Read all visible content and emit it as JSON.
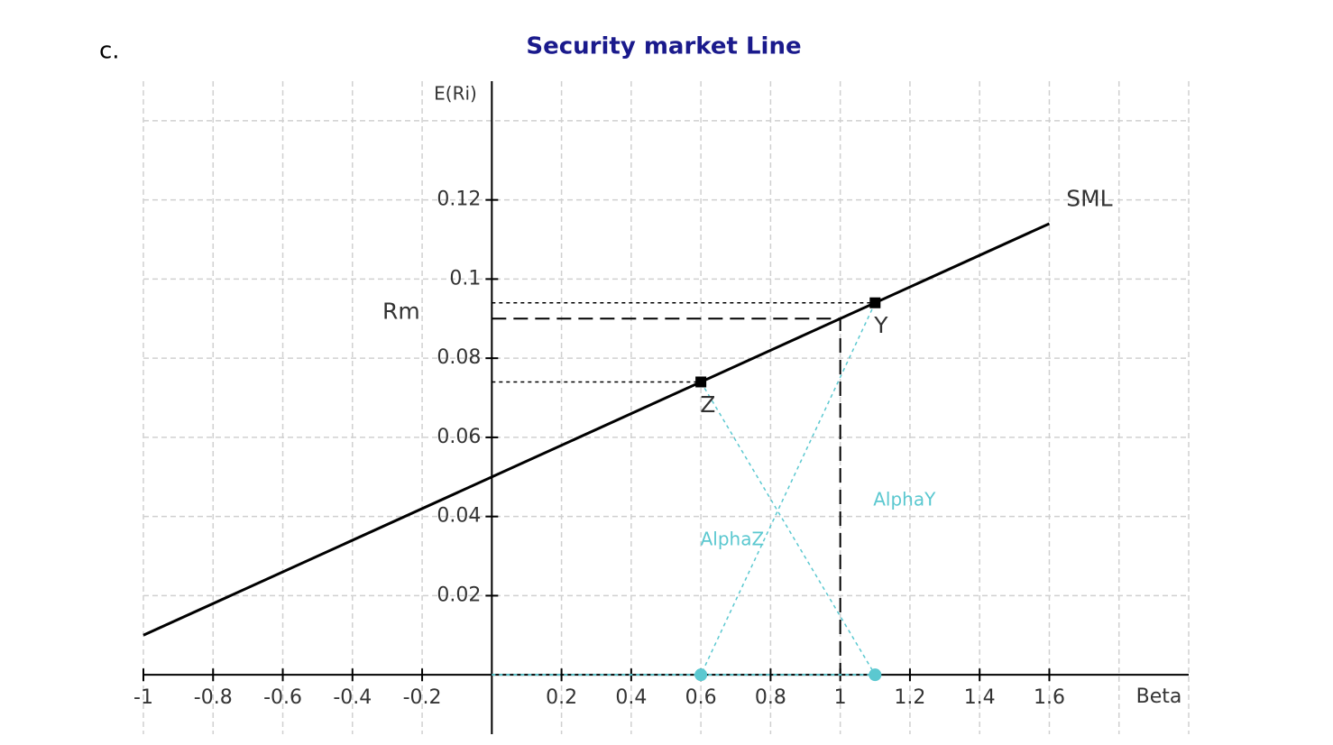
{
  "panel_label": "c.",
  "chart_data": {
    "type": "line",
    "title": "Security market Line",
    "x_label": "Beta",
    "y_label": "E(Ri)",
    "xlim": [
      -1,
      2
    ],
    "ylim": [
      -0.015,
      0.15
    ],
    "xticks": [
      -1,
      -0.8,
      -0.6,
      -0.4,
      -0.2,
      0.2,
      0.4,
      0.6,
      0.8,
      1,
      1.2,
      1.4,
      1.6
    ],
    "yticks": [
      0.02,
      0.04,
      0.06,
      0.08,
      0.1,
      0.12
    ],
    "xgrid": [
      -1,
      -0.8,
      -0.6,
      -0.4,
      -0.2,
      0,
      0.2,
      0.4,
      0.6,
      0.8,
      1,
      1.2,
      1.4,
      1.6,
      1.8,
      2
    ],
    "ygrid": [
      0.02,
      0.04,
      0.06,
      0.08,
      0.1,
      0.12,
      0.14
    ],
    "grid": true,
    "series": [
      {
        "color": "#000000",
        "style": "solid",
        "width": 3,
        "x": [
          -1,
          1.6
        ],
        "values": [
          0.01,
          0.114
        ]
      },
      {
        "color": "#000000",
        "style": "dashed",
        "width": 2,
        "x": [
          0,
          1,
          1
        ],
        "values": [
          0.09,
          0.09,
          0
        ]
      },
      {
        "color": "#000000",
        "style": "dotted",
        "width": 1.5,
        "x": [
          0,
          1.1
        ],
        "values": [
          0.094,
          0.094
        ]
      },
      {
        "color": "#000000",
        "style": "dotted",
        "width": 1.5,
        "x": [
          0,
          0.6
        ],
        "values": [
          0.074,
          0.074
        ]
      },
      {
        "color": "#5bc8d0",
        "style": "dotted",
        "width": 1.5,
        "x": [
          0.6,
          1.1
        ],
        "values": [
          0.074,
          0
        ]
      },
      {
        "color": "#5bc8d0",
        "style": "dotted",
        "width": 1.5,
        "x": [
          1.1,
          0.6
        ],
        "values": [
          0.094,
          0
        ]
      },
      {
        "color": "#5bc8d0",
        "style": "dotted",
        "width": 2,
        "x": [
          0,
          1.1
        ],
        "values": [
          0,
          0
        ]
      },
      {
        "color": "#000000",
        "style": "none",
        "marker": "square",
        "x": [
          0.6,
          1.1
        ],
        "values": [
          0.074,
          0.094
        ]
      },
      {
        "color": "#5bc8d0",
        "style": "none",
        "marker": "circle",
        "x": [
          0.6,
          1.1
        ],
        "values": [
          0,
          0
        ]
      }
    ],
    "annotations": [
      {
        "text": "SML",
        "x": 1.715,
        "y": 0.12,
        "color": "#333333"
      },
      {
        "text": "Rm",
        "x": -0.26,
        "y": 0.0915,
        "color": "#333333"
      },
      {
        "text": "Y",
        "x": 1.117,
        "y": 0.088,
        "color": "#333333"
      },
      {
        "text": "Z",
        "x": 0.62,
        "y": 0.068,
        "color": "#333333"
      },
      {
        "text": "AlphaY",
        "x": 1.184,
        "y": 0.044,
        "color": "#5bc8d0"
      },
      {
        "text": "AlphaZ",
        "x": 0.69,
        "y": 0.034,
        "color": "#5bc8d0"
      }
    ]
  }
}
